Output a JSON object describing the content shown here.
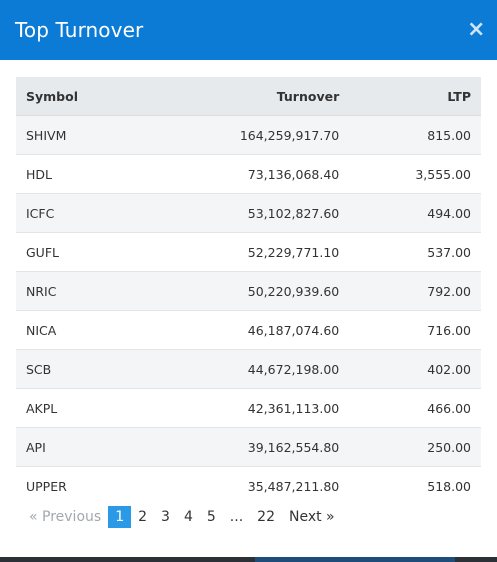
{
  "modal": {
    "title": "Top Turnover",
    "close_label": "×"
  },
  "table": {
    "headers": {
      "symbol": "Symbol",
      "turnover": "Turnover",
      "ltp": "LTP"
    },
    "rows": [
      {
        "symbol": "SHIVM",
        "turnover": "164,259,917.70",
        "ltp": "815.00"
      },
      {
        "symbol": "HDL",
        "turnover": "73,136,068.40",
        "ltp": "3,555.00"
      },
      {
        "symbol": "ICFC",
        "turnover": "53,102,827.60",
        "ltp": "494.00"
      },
      {
        "symbol": "GUFL",
        "turnover": "52,229,771.10",
        "ltp": "537.00"
      },
      {
        "symbol": "NRIC",
        "turnover": "50,220,939.60",
        "ltp": "792.00"
      },
      {
        "symbol": "NICA",
        "turnover": "46,187,074.60",
        "ltp": "716.00"
      },
      {
        "symbol": "SCB",
        "turnover": "44,672,198.00",
        "ltp": "402.00"
      },
      {
        "symbol": "AKPL",
        "turnover": "42,361,113.00",
        "ltp": "466.00"
      },
      {
        "symbol": "API",
        "turnover": "39,162,554.80",
        "ltp": "250.00"
      },
      {
        "symbol": "UPPER",
        "turnover": "35,487,211.80",
        "ltp": "518.00"
      }
    ]
  },
  "pagination": {
    "previous": "«  Previous",
    "pages": [
      "1",
      "2",
      "3",
      "4",
      "5"
    ],
    "ellipsis": "...",
    "last": "22",
    "next": "Next  »",
    "current": "1"
  },
  "colors": {
    "header_bg": "#0b7bd6",
    "active_page": "#2b9ae6"
  }
}
